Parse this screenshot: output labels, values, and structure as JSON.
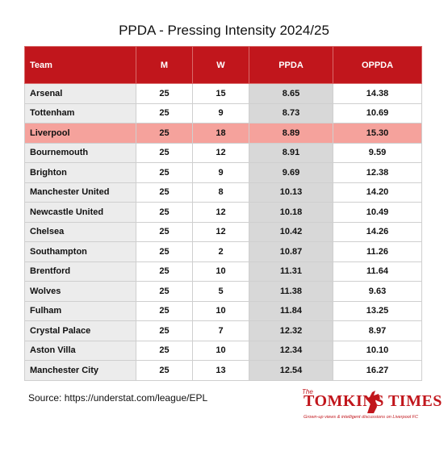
{
  "title": "PPDA - Pressing Intensity 2024/25",
  "table": {
    "headers": [
      "Team",
      "M",
      "W",
      "PPDA",
      "OPPDA"
    ],
    "rows": [
      [
        "Arsenal",
        "25",
        "15",
        "8.65",
        "14.38"
      ],
      [
        "Tottenham",
        "25",
        "9",
        "8.73",
        "10.69"
      ],
      [
        "Liverpool",
        "25",
        "18",
        "8.89",
        "15.30"
      ],
      [
        "Bournemouth",
        "25",
        "12",
        "8.91",
        "9.59"
      ],
      [
        "Brighton",
        "25",
        "9",
        "9.69",
        "12.38"
      ],
      [
        "Manchester United",
        "25",
        "8",
        "10.13",
        "14.20"
      ],
      [
        "Newcastle United",
        "25",
        "12",
        "10.18",
        "10.49"
      ],
      [
        "Chelsea",
        "25",
        "12",
        "10.42",
        "14.26"
      ],
      [
        "Southampton",
        "25",
        "2",
        "10.87",
        "11.26"
      ],
      [
        "Brentford",
        "25",
        "10",
        "11.31",
        "11.64"
      ],
      [
        "Wolves",
        "25",
        "5",
        "11.38",
        "9.63"
      ],
      [
        "Fulham",
        "25",
        "10",
        "11.84",
        "13.25"
      ],
      [
        "Crystal Palace",
        "25",
        "7",
        "12.32",
        "8.97"
      ],
      [
        "Aston Villa",
        "25",
        "10",
        "12.34",
        "10.10"
      ],
      [
        "Manchester City",
        "25",
        "13",
        "12.54",
        "16.27"
      ]
    ]
  },
  "source": "Source: https://understat.com/league/EPL",
  "brand": {
    "prefix": "The",
    "name": "TOMKINS TIMES",
    "tagline": "Grown-up views & intelligent discussions on Liverpool FC"
  }
}
